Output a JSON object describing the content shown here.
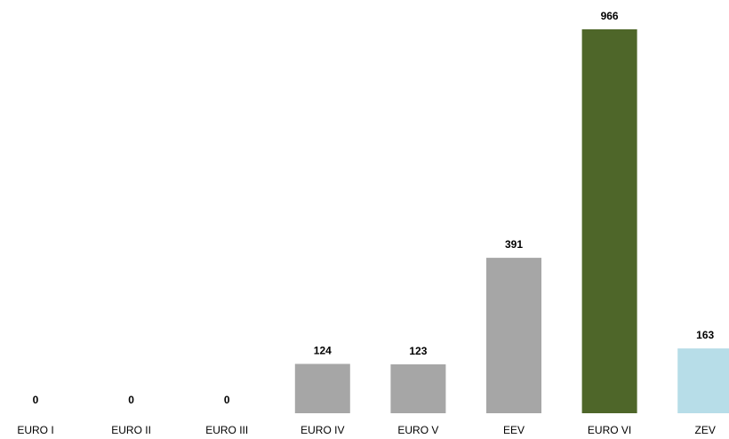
{
  "chart_data": {
    "type": "bar",
    "categories": [
      "EURO I",
      "EURO II",
      "EURO III",
      "EURO IV",
      "EURO V",
      "EEV",
      "EURO VI",
      "ZEV"
    ],
    "values": [
      0,
      0,
      0,
      124,
      123,
      391,
      966,
      163
    ],
    "bar_colors": [
      "#a6a6a6",
      "#a6a6a6",
      "#a6a6a6",
      "#a6a6a6",
      "#a6a6a6",
      "#a6a6a6",
      "#4e6629",
      "#b7dde8"
    ],
    "data_labels": [
      "0",
      "0",
      "0",
      "124",
      "123",
      "391",
      "966",
      "163"
    ],
    "title": "",
    "xlabel": "",
    "ylabel": "",
    "ylim": [
      0,
      966
    ],
    "grid": false,
    "legend": "none"
  }
}
